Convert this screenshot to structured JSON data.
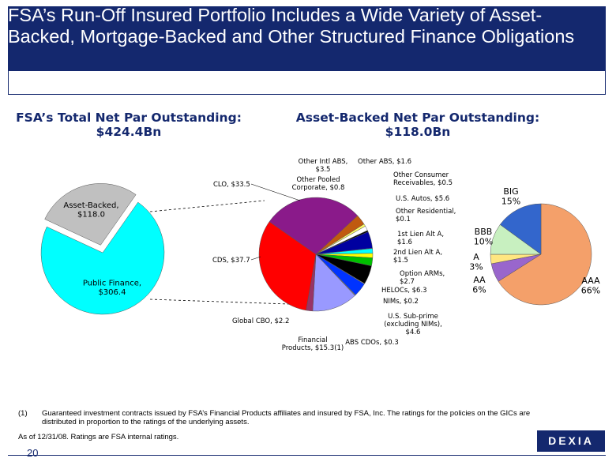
{
  "header": {
    "title": "FSA’s Run-Off Insured Portfolio Includes a Wide Variety of Asset-Backed, Mortgage-Backed and Other Structured Finance Obligations"
  },
  "left_title": "FSA’s Total Net Par Outstanding:\n$424.4Bn",
  "middle_title": "Asset-Backed Net Par Outstanding:\n$118.0Bn",
  "chart_data": [
    {
      "type": "pie",
      "title": "FSA’s Total Net Par Outstanding: $424.4Bn",
      "slices": [
        {
          "name": "Public Finance",
          "label": "Public Finance,\n$306.4",
          "value": 306.4,
          "color": "#00ffff"
        },
        {
          "name": "Asset-Backed",
          "label": "Asset-Backed,\n$118.0",
          "value": 118.0,
          "color": "#c0c0c0"
        }
      ]
    },
    {
      "type": "pie",
      "title": "Asset-Backed Net Par Outstanding: $118.0Bn",
      "slices": [
        {
          "name": "CLO",
          "label": "CLO, $33.5",
          "value": 33.5,
          "color": "#8a1a8a"
        },
        {
          "name": "Other Intl ABS",
          "label": "Other Intl ABS,\n$3.5",
          "value": 3.5,
          "color": "#c05a10"
        },
        {
          "name": "Other Pooled Corporate",
          "label": "Other Pooled\nCorporate, $0.8",
          "value": 0.8,
          "color": "#ffff66"
        },
        {
          "name": "Other ABS",
          "label": "Other ABS, $1.6",
          "value": 1.6,
          "color": "#ffffff"
        },
        {
          "name": "Other Consumer Receivables",
          "label": "Other Consumer\nReceivables, $0.5",
          "value": 0.5,
          "color": "#000000"
        },
        {
          "name": "U.S. Autos",
          "label": "U.S. Autos, $5.6",
          "value": 5.6,
          "color": "#0000a0"
        },
        {
          "name": "Other Residential",
          "label": "Other Residential,\n$0.1",
          "value": 0.1,
          "color": "#ff0000"
        },
        {
          "name": "1st Lien Alt A",
          "label": "1st Lien Alt A,\n$1.6",
          "value": 1.6,
          "color": "#00ffff"
        },
        {
          "name": "2nd Lien Alt A",
          "label": "2nd Lien Alt A,\n$1.5",
          "value": 1.5,
          "color": "#ffff00"
        },
        {
          "name": "Option ARMs",
          "label": "Option ARMs,\n$2.7",
          "value": 2.7,
          "color": "#00c000"
        },
        {
          "name": "HELOCs",
          "label": "HELOCs, $6.3",
          "value": 6.3,
          "color": "#000000"
        },
        {
          "name": "NIMs",
          "label": "NIMs, $0.2",
          "value": 0.2,
          "color": "#ffffff"
        },
        {
          "name": "U.S. Sub-prime (excluding NIMs)",
          "label": "U.S. Sub-prime\n(excluding NIMs),\n$4.6",
          "value": 4.6,
          "color": "#0033ff"
        },
        {
          "name": "ABS CDOs",
          "label": "ABS CDOs, $0.3",
          "value": 0.3,
          "color": "#808080"
        },
        {
          "name": "Financial Products",
          "label": "Financial\nProducts, $15.3(1)",
          "value": 15.3,
          "color": "#9999ff"
        },
        {
          "name": "Global CBO",
          "label": "Global CBO, $2.2",
          "value": 2.2,
          "color": "#993366"
        },
        {
          "name": "CDS",
          "label": "CDS, $37.7",
          "value": 37.7,
          "color": "#ff0000"
        }
      ]
    },
    {
      "type": "pie",
      "title": "",
      "slices": [
        {
          "name": "AAA",
          "label": "AAA\n66%",
          "value": 66,
          "color": "#f4a06a"
        },
        {
          "name": "AA",
          "label": "AA\n6%",
          "value": 6,
          "color": "#9966cc"
        },
        {
          "name": "A",
          "label": "A\n3%",
          "value": 3,
          "color": "#ffe680"
        },
        {
          "name": "BBB",
          "label": "BBB\n10%",
          "value": 10,
          "color": "#c8f0c0"
        },
        {
          "name": "BIG",
          "label": "BIG\n15%",
          "value": 15,
          "color": "#3366cc"
        }
      ]
    }
  ],
  "footnote": {
    "number": "(1)",
    "text": "Guaranteed investment contracts issued by FSA’s Financial Products affiliates and insured by FSA, Inc. The ratings for the policies on the GICs are distributed in proportion to the ratings of the underlying assets."
  },
  "as_of": "As of 12/31/08. Ratings are FSA internal ratings.",
  "page_number": "20",
  "logo": "DEXIA"
}
